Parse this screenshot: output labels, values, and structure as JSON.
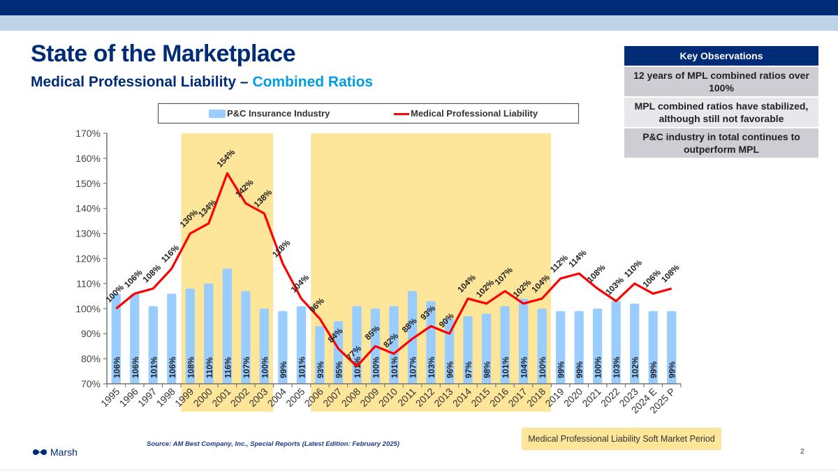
{
  "header": {
    "title": "State of the Marketplace",
    "subtitle_main": "Medical Professional Liability – ",
    "subtitle_accent": "Combined Ratios"
  },
  "key_observations": {
    "heading": "Key Observations",
    "items": [
      "12 years of MPL combined ratios over 100%",
      "MPL combined ratios have stabilized, although still not favorable",
      "P&C industry in total continues to outperform MPL"
    ]
  },
  "footer": {
    "source": "Source: AM Best Company, Inc., Special Reports (Latest Edition: February 2025)",
    "logo_text": "Marsh",
    "soft_market_legend": "Medical Professional Liability Soft Market Period",
    "page_number": "2"
  },
  "colors": {
    "navy": "#002c77",
    "accent_blue": "#009de0",
    "bar": "#99ccff",
    "line": "#ff0000",
    "soft_market": "#fde599"
  },
  "chart_data": {
    "type": "bar",
    "title": "",
    "xlabel": "",
    "ylabel": "",
    "ylim": [
      70,
      170
    ],
    "yticks": [
      "70%",
      "80%",
      "90%",
      "100%",
      "110%",
      "120%",
      "130%",
      "140%",
      "150%",
      "160%",
      "170%"
    ],
    "grid": false,
    "legend_position": "top",
    "categories": [
      "1995",
      "1996",
      "1997",
      "1998",
      "1999",
      "2000",
      "2001",
      "2002",
      "2003",
      "2004",
      "2005",
      "2006",
      "2007",
      "2008",
      "2009",
      "2010",
      "2011",
      "2012",
      "2013",
      "2014",
      "2015",
      "2016",
      "2017",
      "2018",
      "2019",
      "2020",
      "2021",
      "2022",
      "2023",
      "2024 E",
      "2025 P"
    ],
    "series": [
      {
        "name": "P&C Insurance Industry",
        "type": "bar",
        "values": [
          106,
          106,
          101,
          106,
          108,
          110,
          116,
          107,
          100,
          99,
          101,
          93,
          95,
          101,
          100,
          101,
          107,
          103,
          96,
          97,
          98,
          101,
          104,
          100,
          99,
          99,
          100,
          103,
          102,
          99,
          99
        ]
      },
      {
        "name": "Medical Professional Liability",
        "type": "line",
        "values": [
          100,
          106,
          108,
          116,
          130,
          134,
          154,
          142,
          138,
          118,
          104,
          96,
          84,
          77,
          85,
          82,
          88,
          93,
          90,
          104,
          102,
          107,
          102,
          104,
          112,
          114,
          108,
          103,
          110,
          106,
          108
        ]
      }
    ],
    "shaded_periods": [
      {
        "label": "Medical Professional Liability Soft Market Period",
        "from": "1999",
        "to": "2003"
      },
      {
        "label": "Medical Professional Liability Soft Market Period",
        "from": "2006",
        "to": "2018"
      }
    ]
  }
}
